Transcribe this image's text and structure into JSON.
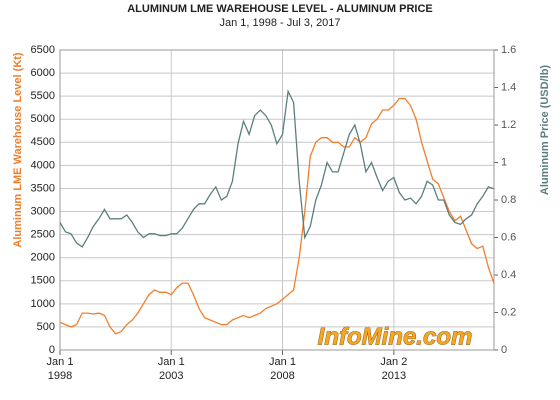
{
  "chart_data": {
    "type": "line",
    "title": "ALUMINUM LME WAREHOUSE LEVEL - ALUMINUM PRICE",
    "subtitle": "Jan 1, 1998 - Jul 3, 2017",
    "y_label": "Aluminum LME Warehouse Level (Kt)",
    "y2_label": "Aluminum Price (USD/lb)",
    "watermark": "InfoMine.com",
    "grid": true,
    "xlim": [
      "1998-01-01",
      "2017-07-03"
    ],
    "xticks": [
      {
        "value": "1998-01-01",
        "label": "Jan 1\n1998"
      },
      {
        "value": "2003-01-01",
        "label": "Jan 1\n2003"
      },
      {
        "value": "2008-01-01",
        "label": "Jan 1\n2008"
      },
      {
        "value": "2013-01-02",
        "label": "Jan 2\n2013"
      }
    ],
    "ylim": [
      0,
      6500
    ],
    "yticks": [
      0,
      500,
      1000,
      1500,
      2000,
      2500,
      3000,
      3500,
      4000,
      4500,
      5000,
      5500,
      6000,
      6500
    ],
    "y2lim": [
      0,
      1.6
    ],
    "y2ticks": [
      0,
      0.2,
      0.4,
      0.6,
      0.8,
      1,
      1.2,
      1.4,
      1.6
    ],
    "x": [
      "1998-01-01",
      "1998-04-01",
      "1998-07-01",
      "1998-10-01",
      "1999-01-01",
      "1999-04-01",
      "1999-07-01",
      "1999-10-01",
      "2000-01-01",
      "2000-04-01",
      "2000-07-01",
      "2000-10-01",
      "2001-01-01",
      "2001-04-01",
      "2001-07-01",
      "2001-10-01",
      "2002-01-01",
      "2002-04-01",
      "2002-07-01",
      "2002-10-01",
      "2003-01-01",
      "2003-04-01",
      "2003-07-01",
      "2003-10-01",
      "2004-01-01",
      "2004-04-01",
      "2004-07-01",
      "2004-10-01",
      "2005-01-01",
      "2005-04-01",
      "2005-07-01",
      "2005-10-01",
      "2006-01-01",
      "2006-04-01",
      "2006-07-01",
      "2006-10-01",
      "2007-01-01",
      "2007-04-01",
      "2007-07-01",
      "2007-10-01",
      "2008-01-01",
      "2008-04-01",
      "2008-07-01",
      "2008-10-01",
      "2009-01-01",
      "2009-04-01",
      "2009-07-01",
      "2009-10-01",
      "2010-01-01",
      "2010-04-01",
      "2010-07-01",
      "2010-10-01",
      "2011-01-01",
      "2011-04-01",
      "2011-07-01",
      "2011-10-01",
      "2012-01-01",
      "2012-04-01",
      "2012-07-01",
      "2012-10-01",
      "2013-01-01",
      "2013-04-01",
      "2013-07-01",
      "2013-10-01",
      "2014-01-01",
      "2014-04-01",
      "2014-07-01",
      "2014-10-01",
      "2015-01-01",
      "2015-04-01",
      "2015-07-01",
      "2015-10-01",
      "2016-01-01",
      "2016-04-01",
      "2016-07-01",
      "2016-10-01",
      "2017-01-01",
      "2017-04-01",
      "2017-07-01"
    ],
    "series": [
      {
        "name": "Aluminum LME Warehouse Level (Kt)",
        "color": "#f07f2d",
        "axis": "y",
        "values": [
          600,
          550,
          500,
          550,
          800,
          800,
          780,
          800,
          750,
          500,
          350,
          400,
          550,
          650,
          800,
          1000,
          1200,
          1300,
          1250,
          1250,
          1200,
          1350,
          1450,
          1450,
          1200,
          900,
          700,
          650,
          600,
          550,
          550,
          650,
          700,
          750,
          700,
          750,
          800,
          900,
          950,
          1000,
          1100,
          1200,
          1300,
          2000,
          3000,
          4200,
          4500,
          4600,
          4600,
          4500,
          4500,
          4400,
          4400,
          4600,
          4500,
          4600,
          4900,
          5000,
          5200,
          5200,
          5300,
          5450,
          5450,
          5300,
          5000,
          4500,
          4100,
          3700,
          3600,
          3300,
          3000,
          2800,
          2900,
          2600,
          2300,
          2200,
          2250,
          1800,
          1450
        ]
      },
      {
        "name": "Aluminum Price (USD/lb)",
        "color": "#5b7f7e",
        "axis": "y2",
        "values": [
          0.68,
          0.63,
          0.62,
          0.57,
          0.55,
          0.6,
          0.66,
          0.7,
          0.75,
          0.7,
          0.7,
          0.7,
          0.72,
          0.68,
          0.63,
          0.6,
          0.62,
          0.62,
          0.61,
          0.61,
          0.62,
          0.62,
          0.65,
          0.7,
          0.75,
          0.78,
          0.78,
          0.83,
          0.87,
          0.8,
          0.82,
          0.9,
          1.1,
          1.22,
          1.15,
          1.25,
          1.28,
          1.25,
          1.2,
          1.1,
          1.15,
          1.38,
          1.32,
          0.9,
          0.6,
          0.66,
          0.8,
          0.88,
          1.0,
          0.95,
          0.95,
          1.05,
          1.15,
          1.2,
          1.1,
          0.95,
          1.0,
          0.92,
          0.85,
          0.9,
          0.92,
          0.84,
          0.8,
          0.81,
          0.78,
          0.82,
          0.9,
          0.88,
          0.8,
          0.8,
          0.72,
          0.68,
          0.67,
          0.7,
          0.72,
          0.78,
          0.82,
          0.87,
          0.86
        ]
      }
    ]
  }
}
